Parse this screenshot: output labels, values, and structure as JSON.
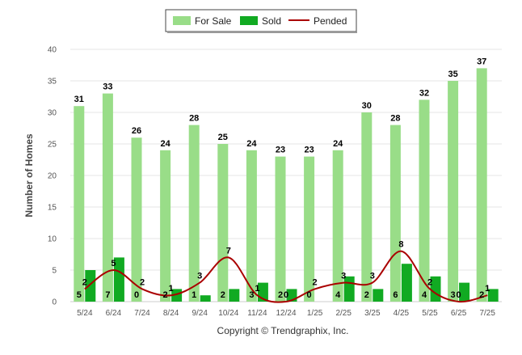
{
  "chart_data": {
    "type": "bar",
    "ylabel": "Number of Homes",
    "ylim": [
      0,
      40
    ],
    "yticks": [
      0,
      5,
      10,
      15,
      20,
      25,
      30,
      35,
      40
    ],
    "categories": [
      "5/24",
      "6/24",
      "7/24",
      "8/24",
      "9/24",
      "10/24",
      "11/24",
      "12/24",
      "1/25",
      "2/25",
      "3/25",
      "4/25",
      "5/25",
      "6/25",
      "7/25"
    ],
    "series": [
      {
        "name": "For Sale",
        "kind": "bar",
        "color": "#99DD88",
        "values": [
          31,
          33,
          26,
          24,
          28,
          25,
          24,
          23,
          23,
          24,
          30,
          28,
          32,
          35,
          37
        ]
      },
      {
        "name": "Sold",
        "kind": "bar",
        "color": "#11AA22",
        "values": [
          5,
          7,
          0,
          2,
          1,
          2,
          3,
          2,
          0,
          4,
          2,
          6,
          4,
          3,
          2
        ]
      },
      {
        "name": "Pended",
        "kind": "line",
        "color": "#AA0000",
        "values": [
          2,
          5,
          2,
          1,
          3,
          7,
          1,
          0,
          2,
          3,
          3,
          8,
          2,
          0,
          1
        ]
      }
    ],
    "legend_position": "top-center",
    "grid": true
  },
  "footer": {
    "copyright": "Copyright © Trendgraphix, Inc."
  }
}
